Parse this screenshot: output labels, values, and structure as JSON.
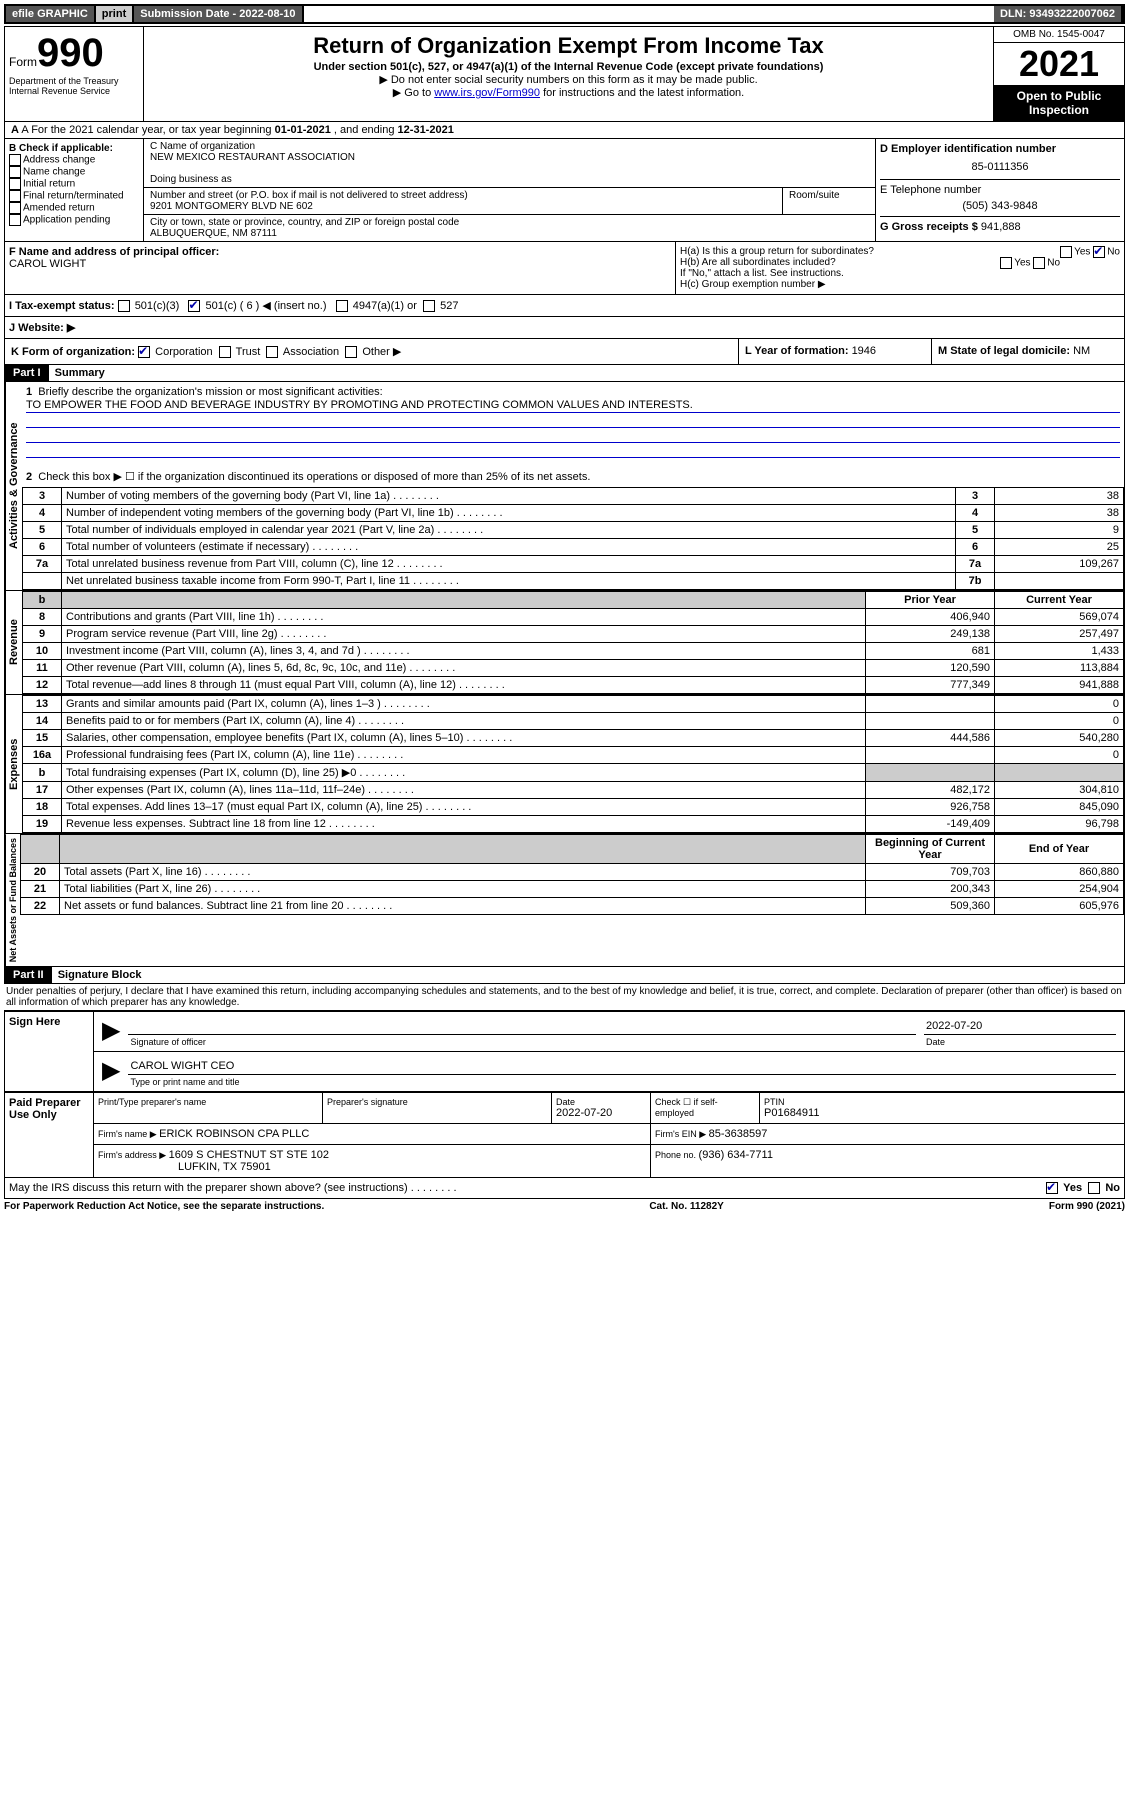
{
  "topbar": {
    "efile": "efile GRAPHIC",
    "print": "print",
    "submission": "Submission Date - 2022-08-10",
    "dln": "DLN: 93493222007062"
  },
  "header": {
    "form_word": "Form",
    "form_num": "990",
    "title": "Return of Organization Exempt From Income Tax",
    "subtitle": "Under section 501(c), 527, or 4947(a)(1) of the Internal Revenue Code (except private foundations)",
    "note1": "▶ Do not enter social security numbers on this form as it may be made public.",
    "note2_pre": "▶ Go to ",
    "note2_link": "www.irs.gov/Form990",
    "note2_post": " for instructions and the latest information.",
    "omb": "OMB No. 1545-0047",
    "year": "2021",
    "open": "Open to Public Inspection",
    "dept1": "Department of the Treasury",
    "dept2": "Internal Revenue Service"
  },
  "section_a": {
    "label": "A For the 2021 calendar year, or tax year beginning ",
    "begin": "01-01-2021",
    "mid": " , and ending ",
    "end": "12-31-2021"
  },
  "section_b": {
    "title": "B Check if applicable:",
    "opts": [
      "Address change",
      "Name change",
      "Initial return",
      "Final return/terminated",
      "Amended return",
      "Application pending"
    ]
  },
  "section_c": {
    "name_label": "C Name of organization",
    "name": "NEW MEXICO RESTAURANT ASSOCIATION",
    "dba_label": "Doing business as",
    "addr_label": "Number and street (or P.O. box if mail is not delivered to street address)",
    "room_label": "Room/suite",
    "addr": "9201 MONTGOMERY BLVD NE 602",
    "city_label": "City or town, state or province, country, and ZIP or foreign postal code",
    "city": "ALBUQUERQUE, NM  87111"
  },
  "section_d": {
    "label": "D Employer identification number",
    "ein": "85-0111356"
  },
  "section_e": {
    "label": "E Telephone number",
    "phone": "(505) 343-9848"
  },
  "section_g": {
    "label": "G Gross receipts $ ",
    "amount": "941,888"
  },
  "section_f": {
    "label": "F Name and address of principal officer:",
    "name": "CAROL WIGHT"
  },
  "section_h": {
    "ha": "H(a)  Is this a group return for subordinates?",
    "hb": "H(b)  Are all subordinates included?",
    "hb_note": "If \"No,\" attach a list. See instructions.",
    "hc": "H(c)  Group exemption number ▶",
    "yes": "Yes",
    "no": "No"
  },
  "section_i": {
    "label": "I     Tax-exempt status:",
    "opt1": "501(c)(3)",
    "opt2": "501(c) ( 6 ) ◀ (insert no.)",
    "opt3": "4947(a)(1) or",
    "opt4": "527"
  },
  "section_j": {
    "label": "J     Website: ▶"
  },
  "section_k": {
    "label": "K Form of organization:",
    "opts": [
      "Corporation",
      "Trust",
      "Association",
      "Other ▶"
    ]
  },
  "section_l": {
    "label": "L Year of formation: ",
    "val": "1946"
  },
  "section_m": {
    "label": "M State of legal domicile: ",
    "val": "NM"
  },
  "part1": {
    "header": "Part I",
    "title": "Summary",
    "line1_label": "Briefly describe the organization's mission or most significant activities:",
    "line1_text": "TO EMPOWER THE FOOD AND BEVERAGE INDUSTRY BY PROMOTING AND PROTECTING COMMON VALUES AND INTERESTS.",
    "line2": "Check this box ▶ ☐  if the organization discontinued its operations or disposed of more than 25% of its net assets."
  },
  "governance_rows": [
    {
      "n": "3",
      "label": "Number of voting members of the governing body (Part VI, line 1a)",
      "box": "3",
      "val": "38"
    },
    {
      "n": "4",
      "label": "Number of independent voting members of the governing body (Part VI, line 1b)",
      "box": "4",
      "val": "38"
    },
    {
      "n": "5",
      "label": "Total number of individuals employed in calendar year 2021 (Part V, line 2a)",
      "box": "5",
      "val": "9"
    },
    {
      "n": "6",
      "label": "Total number of volunteers (estimate if necessary)",
      "box": "6",
      "val": "25"
    },
    {
      "n": "7a",
      "label": "Total unrelated business revenue from Part VIII, column (C), line 12",
      "box": "7a",
      "val": "109,267"
    },
    {
      "n": "",
      "label": "Net unrelated business taxable income from Form 990-T, Part I, line 11",
      "box": "7b",
      "val": ""
    }
  ],
  "two_col_headers": {
    "prior": "Prior Year",
    "current": "Current Year",
    "begin": "Beginning of Current Year",
    "end": "End of Year"
  },
  "revenue_rows": [
    {
      "n": "8",
      "label": "Contributions and grants (Part VIII, line 1h)",
      "p": "406,940",
      "c": "569,074"
    },
    {
      "n": "9",
      "label": "Program service revenue (Part VIII, line 2g)",
      "p": "249,138",
      "c": "257,497"
    },
    {
      "n": "10",
      "label": "Investment income (Part VIII, column (A), lines 3, 4, and 7d )",
      "p": "681",
      "c": "1,433"
    },
    {
      "n": "11",
      "label": "Other revenue (Part VIII, column (A), lines 5, 6d, 8c, 9c, 10c, and 11e)",
      "p": "120,590",
      "c": "113,884"
    },
    {
      "n": "12",
      "label": "Total revenue—add lines 8 through 11 (must equal Part VIII, column (A), line 12)",
      "p": "777,349",
      "c": "941,888"
    }
  ],
  "expense_rows": [
    {
      "n": "13",
      "label": "Grants and similar amounts paid (Part IX, column (A), lines 1–3 )",
      "p": "",
      "c": "0"
    },
    {
      "n": "14",
      "label": "Benefits paid to or for members (Part IX, column (A), line 4)",
      "p": "",
      "c": "0"
    },
    {
      "n": "15",
      "label": "Salaries, other compensation, employee benefits (Part IX, column (A), lines 5–10)",
      "p": "444,586",
      "c": "540,280"
    },
    {
      "n": "16a",
      "label": "Professional fundraising fees (Part IX, column (A), line 11e)",
      "p": "",
      "c": "0"
    },
    {
      "n": "b",
      "label": "Total fundraising expenses (Part IX, column (D), line 25) ▶0",
      "p": "grey",
      "c": "grey"
    },
    {
      "n": "17",
      "label": "Other expenses (Part IX, column (A), lines 11a–11d, 11f–24e)",
      "p": "482,172",
      "c": "304,810"
    },
    {
      "n": "18",
      "label": "Total expenses. Add lines 13–17 (must equal Part IX, column (A), line 25)",
      "p": "926,758",
      "c": "845,090"
    },
    {
      "n": "19",
      "label": "Revenue less expenses. Subtract line 18 from line 12",
      "p": "-149,409",
      "c": "96,798"
    }
  ],
  "netassets_rows": [
    {
      "n": "20",
      "label": "Total assets (Part X, line 16)",
      "p": "709,703",
      "c": "860,880"
    },
    {
      "n": "21",
      "label": "Total liabilities (Part X, line 26)",
      "p": "200,343",
      "c": "254,904"
    },
    {
      "n": "22",
      "label": "Net assets or fund balances. Subtract line 21 from line 20",
      "p": "509,360",
      "c": "605,976"
    }
  ],
  "vert_labels": {
    "gov": "Activities & Governance",
    "rev": "Revenue",
    "exp": "Expenses",
    "net": "Net Assets or Fund Balances"
  },
  "part2": {
    "header": "Part II",
    "title": "Signature Block",
    "declaration": "Under penalties of perjury, I declare that I have examined this return, including accompanying schedules and statements, and to the best of my knowledge and belief, it is true, correct, and complete. Declaration of preparer (other than officer) is based on all information of which preparer has any knowledge."
  },
  "sign": {
    "left": "Sign Here",
    "sig_officer": "Signature of officer",
    "date_label": "Date",
    "date": "2022-07-20",
    "name": "CAROL WIGHT CEO",
    "name_label": "Type or print name and title"
  },
  "preparer": {
    "left": "Paid Preparer Use Only",
    "h1": "Print/Type preparer's name",
    "h2": "Preparer's signature",
    "h3": "Date",
    "h3v": "2022-07-20",
    "h4": "Check ☐ if self-employed",
    "h5": "PTIN",
    "h5v": "P01684911",
    "firm_label": "Firm's name    ▶ ",
    "firm": "ERICK ROBINSON CPA PLLC",
    "ein_label": "Firm's EIN ▶ ",
    "ein": "85-3638597",
    "addr_label": "Firm's address ▶ ",
    "addr1": "1609 S CHESTNUT ST STE 102",
    "addr2": "LUFKIN, TX  75901",
    "phone_label": "Phone no. ",
    "phone": "(936) 634-7711"
  },
  "bottom": {
    "discuss": "May the IRS discuss this return with the preparer shown above? (see instructions)",
    "yes": "Yes",
    "no": "No",
    "paperwork": "For Paperwork Reduction Act Notice, see the separate instructions.",
    "cat": "Cat. No. 11282Y",
    "form": "Form 990 (2021)"
  }
}
